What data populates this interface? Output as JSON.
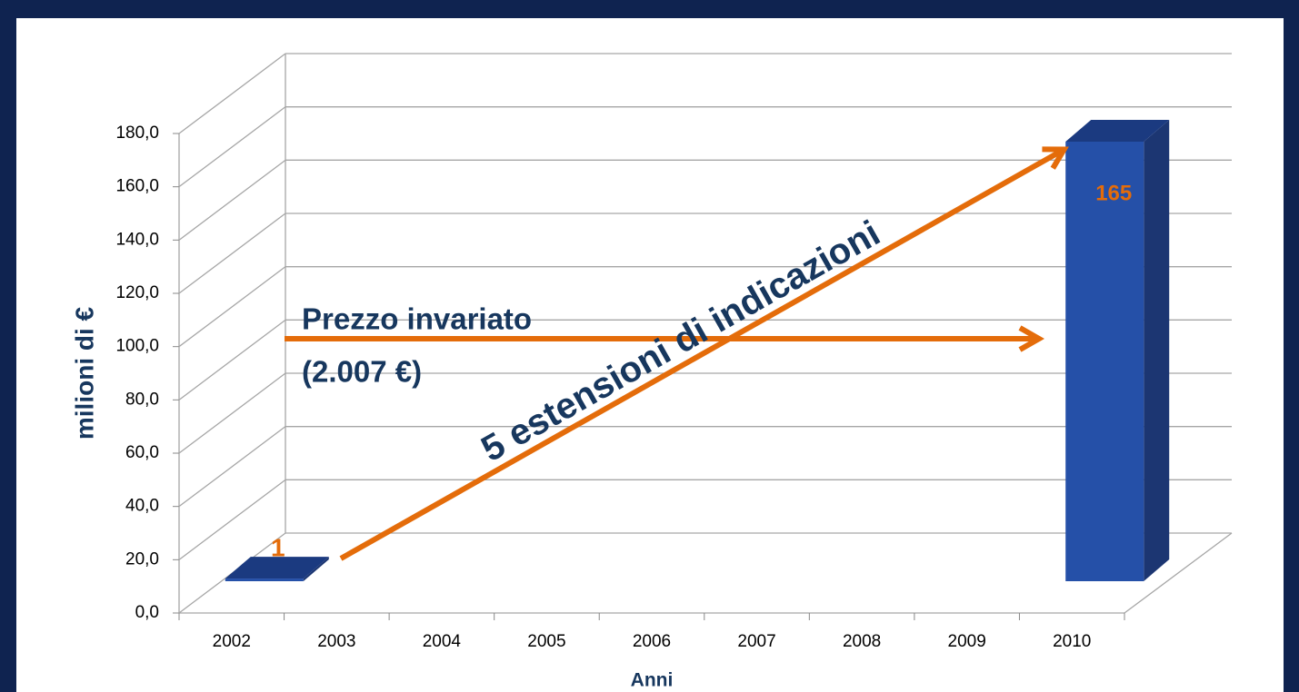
{
  "chart_data": {
    "type": "bar3d",
    "categories": [
      "2002",
      "2003",
      "2004",
      "2005",
      "2006",
      "2007",
      "2008",
      "2009",
      "2010"
    ],
    "values": [
      1,
      null,
      null,
      null,
      null,
      null,
      null,
      null,
      165
    ],
    "value_labels": [
      "1",
      null,
      null,
      null,
      null,
      null,
      null,
      null,
      "165"
    ],
    "color": "#2550a8",
    "xlabel": "Anni",
    "ylabel": "milioni di €",
    "ylim": [
      0,
      180
    ],
    "yticks": [
      {
        "value": 0,
        "label": "0,0"
      },
      {
        "value": 20,
        "label": "20,0"
      },
      {
        "value": 40,
        "label": "40,0"
      },
      {
        "value": 60,
        "label": "60,0"
      },
      {
        "value": 80,
        "label": "80,0"
      },
      {
        "value": 100,
        "label": "100,0"
      },
      {
        "value": 120,
        "label": "120,0"
      },
      {
        "value": 140,
        "label": "140,0"
      },
      {
        "value": 160,
        "label": "160,0"
      },
      {
        "value": 180,
        "label": "180,0"
      }
    ],
    "grid": true,
    "annotations": [
      "Prezzo invariato",
      "(2.007 €)",
      "5 estensioni di indicazioni"
    ]
  }
}
